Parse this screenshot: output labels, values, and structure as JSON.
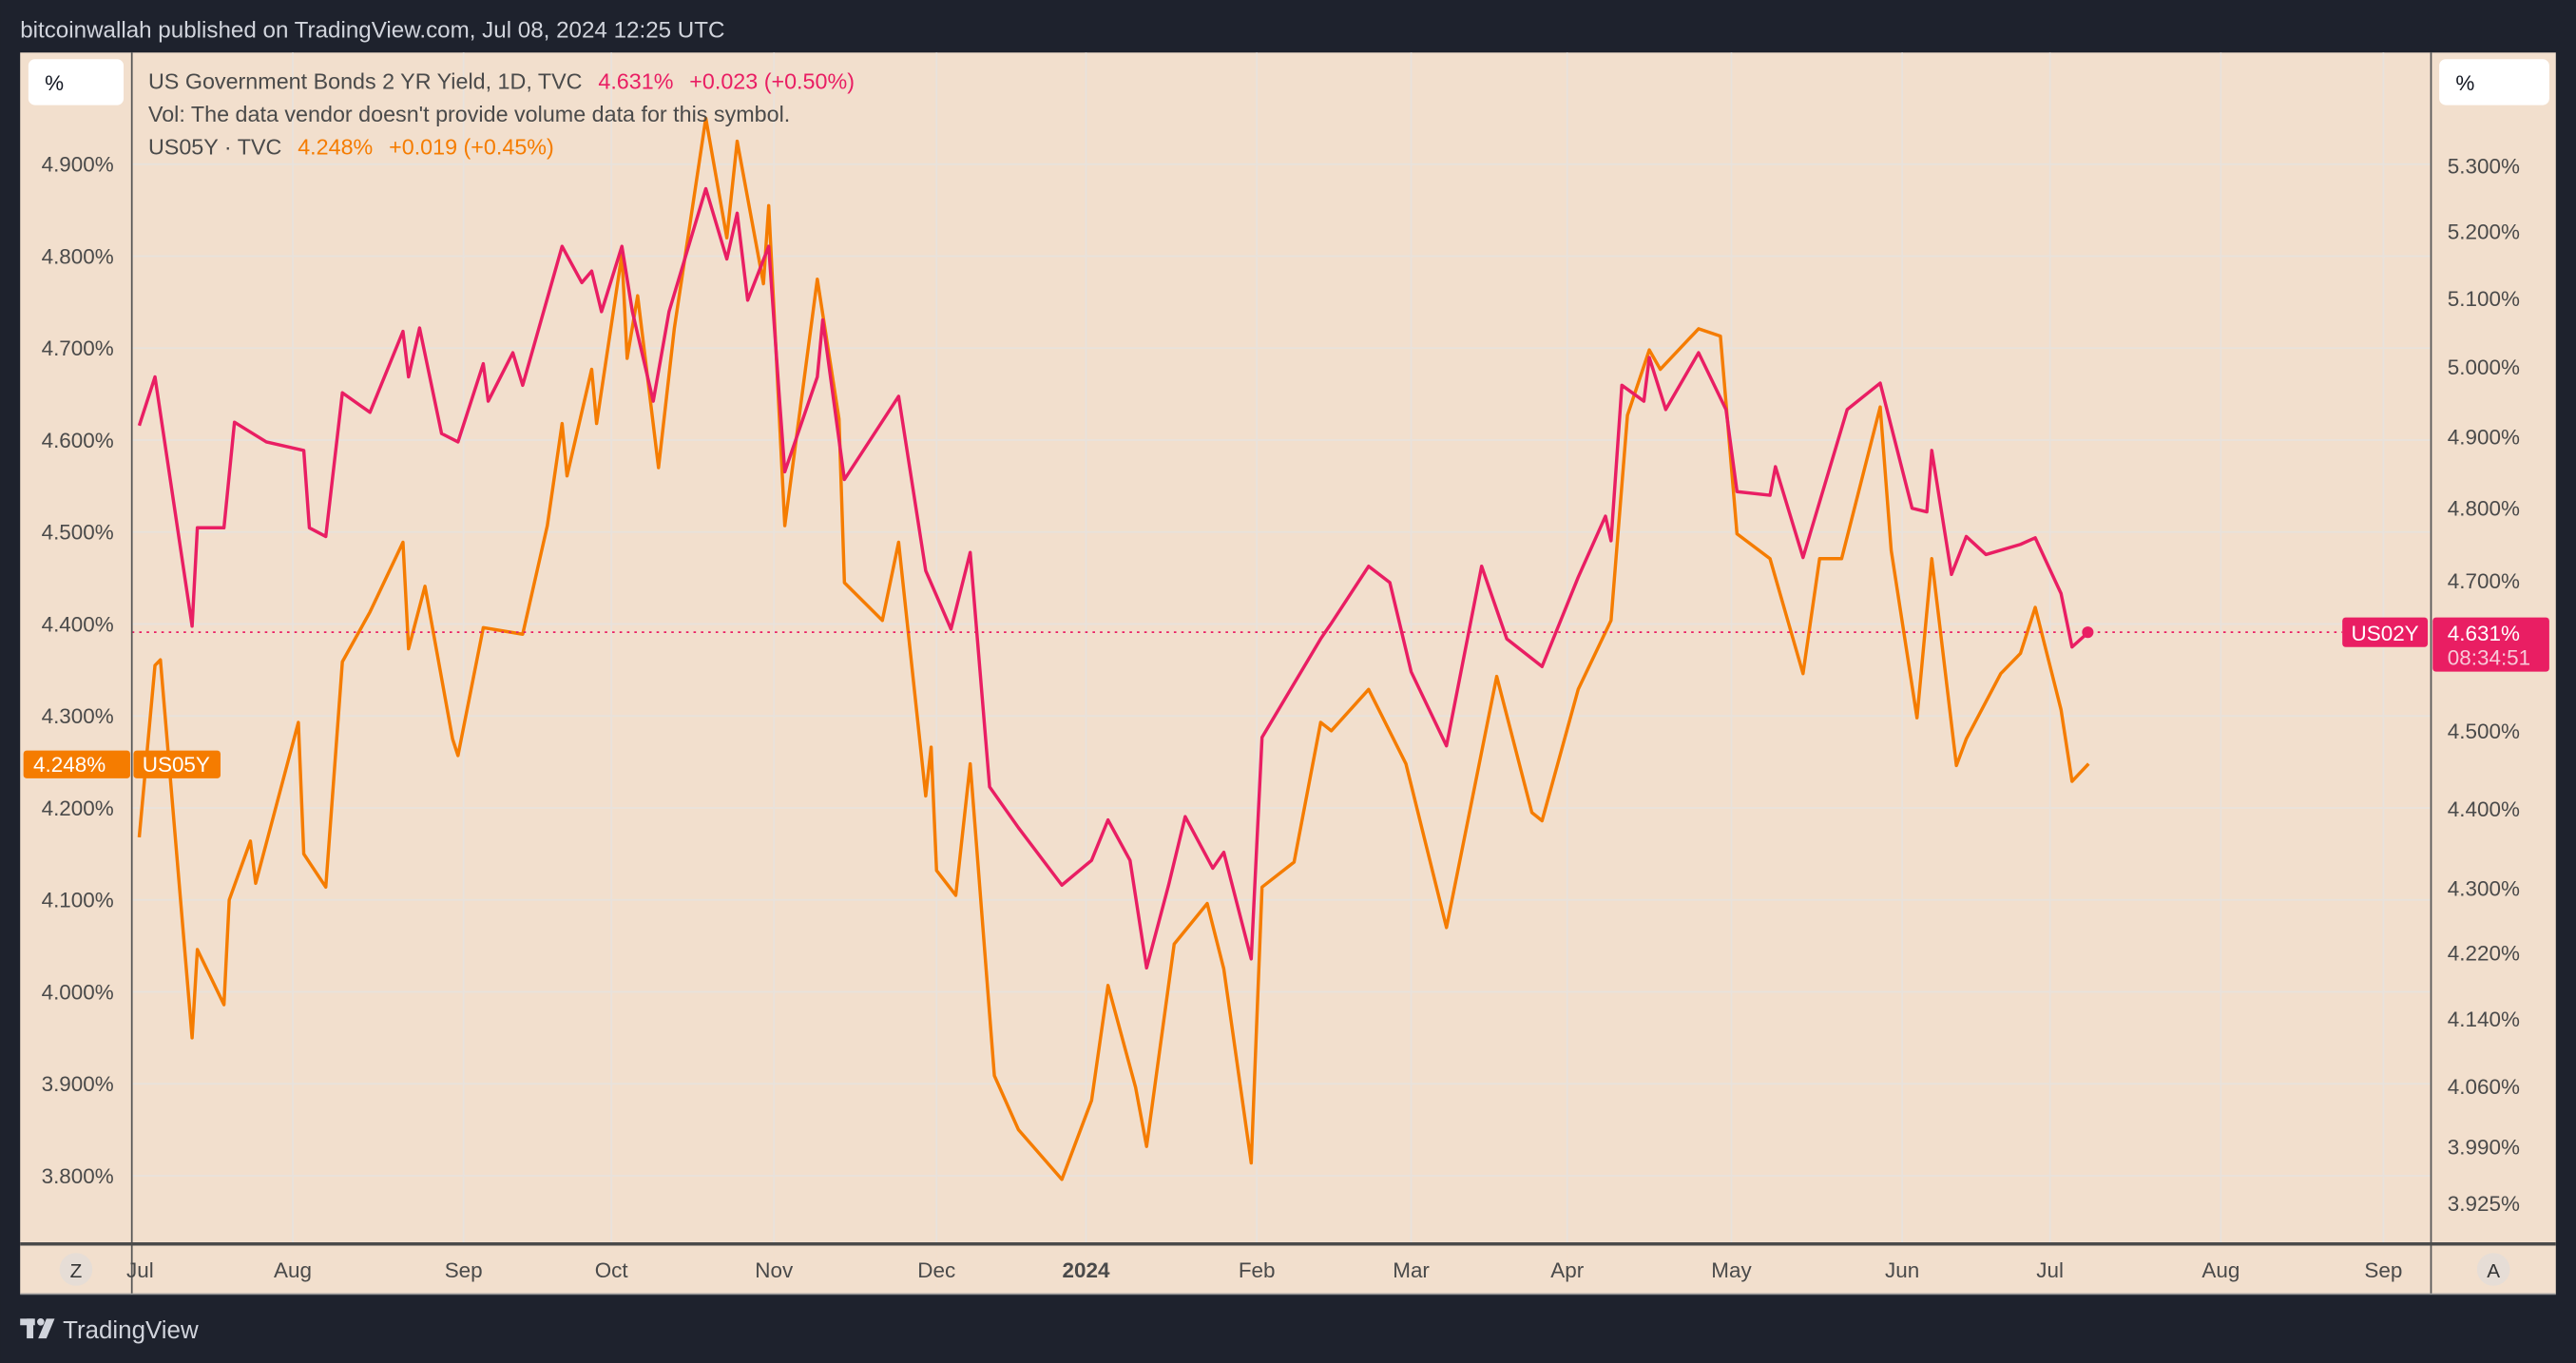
{
  "header": {
    "attribution": "bitcoinwallah published on TradingView.com, Jul 08, 2024 12:25 UTC"
  },
  "footer": {
    "logo_text": "TradingView"
  },
  "scale_buttons": {
    "left": "%",
    "right": "%"
  },
  "axis_buttons": {
    "left": "Z",
    "right": "A"
  },
  "legend": {
    "main_symbol": "US Government Bonds 2 YR Yield, 1D, TVC",
    "main_value": "4.631%",
    "main_change": "+0.023 (+0.50%)",
    "volume_note": "Vol: The data vendor doesn't provide volume data for this symbol.",
    "compare_symbol": "US05Y · TVC",
    "compare_value": "4.248%",
    "compare_change": "+0.019 (+0.45%)"
  },
  "price_labels": {
    "us02y_name": "US02Y",
    "us02y_value": "4.631%",
    "us02y_countdown": "08:34:51",
    "us05y_name": "US05Y",
    "us05y_value": "4.248%"
  },
  "colors": {
    "background": "#f2dfcd",
    "us02y": "#e91e63",
    "us05y": "#f57c00",
    "frame": "#1e222d",
    "grid": "#e9e1da"
  },
  "chart_data": {
    "type": "line",
    "title": "",
    "grid": true,
    "x_tick_labels": [
      "Jul",
      "Aug",
      "Sep",
      "Oct",
      "Nov",
      "Dec",
      "2024",
      "Feb",
      "Mar",
      "Apr",
      "May",
      "Jun",
      "Jul",
      "Aug",
      "Sep"
    ],
    "left_axis": {
      "scale": "linear",
      "range": [
        3.75,
        4.99
      ],
      "ticks": [
        "4.900%",
        "4.800%",
        "4.700%",
        "4.600%",
        "4.500%",
        "4.400%",
        "4.300%",
        "4.200%",
        "4.100%",
        "4.000%",
        "3.900%",
        "3.800%"
      ]
    },
    "right_axis": {
      "scale": "log",
      "range": [
        3.9,
        5.45
      ],
      "ticks": [
        "5.300%",
        "5.200%",
        "5.100%",
        "5.000%",
        "4.900%",
        "4.800%",
        "4.700%",
        "4.500%",
        "4.400%",
        "4.300%",
        "4.220%",
        "4.140%",
        "4.060%",
        "3.990%",
        "3.925%"
      ]
    },
    "series": [
      {
        "name": "US05Y",
        "axis": "left",
        "points": [
          [
            "2023-07-03",
            4.168
          ],
          [
            "2023-07-06",
            4.355
          ],
          [
            "2023-07-07",
            4.361
          ],
          [
            "2023-07-13",
            3.95
          ],
          [
            "2023-07-14",
            4.046
          ],
          [
            "2023-07-19",
            3.986
          ],
          [
            "2023-07-20",
            4.1
          ],
          [
            "2023-07-24",
            4.164
          ],
          [
            "2023-07-25",
            4.118
          ],
          [
            "2023-08-02",
            4.293
          ],
          [
            "2023-08-03",
            4.15
          ],
          [
            "2023-08-07",
            4.114
          ],
          [
            "2023-08-10",
            4.359
          ],
          [
            "2023-08-15",
            4.413
          ],
          [
            "2023-08-21",
            4.489
          ],
          [
            "2023-08-22",
            4.373
          ],
          [
            "2023-08-25",
            4.441
          ],
          [
            "2023-08-30",
            4.275
          ],
          [
            "2023-08-31",
            4.257
          ],
          [
            "2023-09-05",
            4.396
          ],
          [
            "2023-09-13",
            4.389
          ],
          [
            "2023-09-18",
            4.507
          ],
          [
            "2023-09-21",
            4.618
          ],
          [
            "2023-09-22",
            4.561
          ],
          [
            "2023-09-27",
            4.677
          ],
          [
            "2023-09-28",
            4.618
          ],
          [
            "2023-10-03",
            4.802
          ],
          [
            "2023-10-04",
            4.689
          ],
          [
            "2023-10-06",
            4.757
          ],
          [
            "2023-10-10",
            4.57
          ],
          [
            "2023-10-13",
            4.721
          ],
          [
            "2023-10-19",
            4.95
          ],
          [
            "2023-10-23",
            4.82
          ],
          [
            "2023-10-25",
            4.925
          ],
          [
            "2023-10-30",
            4.77
          ],
          [
            "2023-10-31",
            4.855
          ],
          [
            "2023-11-03",
            4.507
          ],
          [
            "2023-11-09",
            4.775
          ],
          [
            "2023-11-13",
            4.623
          ],
          [
            "2023-11-14",
            4.445
          ],
          [
            "2023-11-21",
            4.404
          ],
          [
            "2023-11-24",
            4.489
          ],
          [
            "2023-11-29",
            4.213
          ],
          [
            "2023-11-30",
            4.266
          ],
          [
            "2023-12-01",
            4.132
          ],
          [
            "2023-12-05",
            4.105
          ],
          [
            "2023-12-08",
            4.248
          ],
          [
            "2023-12-13",
            3.909
          ],
          [
            "2023-12-18",
            3.85
          ],
          [
            "2023-12-27",
            3.796
          ],
          [
            "2024-01-02",
            3.882
          ],
          [
            "2024-01-05",
            4.007
          ],
          [
            "2024-01-10",
            3.896
          ],
          [
            "2024-01-12",
            3.832
          ],
          [
            "2024-01-17",
            4.052
          ],
          [
            "2024-01-23",
            4.096
          ],
          [
            "2024-01-26",
            4.025
          ],
          [
            "2024-01-31",
            3.814
          ],
          [
            "2024-02-02",
            4.114
          ],
          [
            "2024-02-08",
            4.141
          ],
          [
            "2024-02-13",
            4.293
          ],
          [
            "2024-02-15",
            4.284
          ],
          [
            "2024-02-22",
            4.329
          ],
          [
            "2024-02-29",
            4.248
          ],
          [
            "2024-03-08",
            4.07
          ],
          [
            "2024-03-18",
            4.343
          ],
          [
            "2024-03-25",
            4.195
          ],
          [
            "2024-03-27",
            4.186
          ],
          [
            "2024-04-03",
            4.329
          ],
          [
            "2024-04-09",
            4.404
          ],
          [
            "2024-04-12",
            4.627
          ],
          [
            "2024-04-16",
            4.698
          ],
          [
            "2024-04-18",
            4.677
          ],
          [
            "2024-04-25",
            4.721
          ],
          [
            "2024-04-29",
            4.713
          ],
          [
            "2024-05-02",
            4.498
          ],
          [
            "2024-05-08",
            4.471
          ],
          [
            "2024-05-14",
            4.346
          ],
          [
            "2024-05-17",
            4.471
          ],
          [
            "2024-05-21",
            4.471
          ],
          [
            "2024-05-28",
            4.636
          ],
          [
            "2024-05-30",
            4.48
          ],
          [
            "2024-06-04",
            4.298
          ],
          [
            "2024-06-07",
            4.471
          ],
          [
            "2024-06-12",
            4.246
          ],
          [
            "2024-06-14",
            4.275
          ],
          [
            "2024-06-21",
            4.346
          ],
          [
            "2024-06-25",
            4.368
          ],
          [
            "2024-06-28",
            4.418
          ],
          [
            "2024-07-03",
            4.307
          ],
          [
            "2024-07-05",
            4.229
          ],
          [
            "2024-07-08",
            4.248
          ]
        ]
      },
      {
        "name": "US02Y",
        "axis": "right",
        "points": [
          [
            "2023-07-03",
            4.916
          ],
          [
            "2023-07-06",
            4.986
          ],
          [
            "2023-07-13",
            4.639
          ],
          [
            "2023-07-14",
            4.773
          ],
          [
            "2023-07-19",
            4.773
          ],
          [
            "2023-07-21",
            4.921
          ],
          [
            "2023-07-27",
            4.893
          ],
          [
            "2023-08-03",
            4.881
          ],
          [
            "2023-08-04",
            4.773
          ],
          [
            "2023-08-07",
            4.761
          ],
          [
            "2023-08-10",
            4.963
          ],
          [
            "2023-08-15",
            4.935
          ],
          [
            "2023-08-21",
            5.052
          ],
          [
            "2023-08-22",
            4.986
          ],
          [
            "2023-08-24",
            5.057
          ],
          [
            "2023-08-28",
            4.905
          ],
          [
            "2023-08-31",
            4.893
          ],
          [
            "2023-09-05",
            5.005
          ],
          [
            "2023-09-06",
            4.951
          ],
          [
            "2023-09-11",
            5.021
          ],
          [
            "2023-09-13",
            4.974
          ],
          [
            "2023-09-21",
            5.178
          ],
          [
            "2023-09-25",
            5.124
          ],
          [
            "2023-09-27",
            5.141
          ],
          [
            "2023-09-29",
            5.081
          ],
          [
            "2023-10-03",
            5.178
          ],
          [
            "2023-10-05",
            5.081
          ],
          [
            "2023-10-09",
            4.951
          ],
          [
            "2023-10-12",
            5.081
          ],
          [
            "2023-10-19",
            5.265
          ],
          [
            "2023-10-23",
            5.159
          ],
          [
            "2023-10-25",
            5.228
          ],
          [
            "2023-10-27",
            5.098
          ],
          [
            "2023-10-31",
            5.178
          ],
          [
            "2023-11-02",
            4.956
          ],
          [
            "2023-11-03",
            4.851
          ],
          [
            "2023-11-09",
            4.986
          ],
          [
            "2023-11-10",
            5.069
          ],
          [
            "2023-11-14",
            4.84
          ],
          [
            "2023-11-24",
            4.958
          ],
          [
            "2023-11-29",
            4.714
          ],
          [
            "2023-12-04",
            4.635
          ],
          [
            "2023-12-08",
            4.739
          ],
          [
            "2023-12-12",
            4.428
          ],
          [
            "2023-12-18",
            4.376
          ],
          [
            "2023-12-27",
            4.304
          ],
          [
            "2024-01-02",
            4.335
          ],
          [
            "2024-01-05",
            4.386
          ],
          [
            "2024-01-09",
            4.335
          ],
          [
            "2024-01-12",
            4.202
          ],
          [
            "2024-01-16",
            4.304
          ],
          [
            "2024-01-19",
            4.39
          ],
          [
            "2024-01-24",
            4.325
          ],
          [
            "2024-01-26",
            4.345
          ],
          [
            "2024-01-31",
            4.213
          ],
          [
            "2024-02-02",
            4.492
          ],
          [
            "2024-02-13",
            4.622
          ],
          [
            "2024-02-15",
            4.643
          ],
          [
            "2024-02-22",
            4.72
          ],
          [
            "2024-02-26",
            4.698
          ],
          [
            "2024-03-01",
            4.578
          ],
          [
            "2024-03-08",
            4.481
          ],
          [
            "2024-03-15",
            4.72
          ],
          [
            "2024-03-20",
            4.622
          ],
          [
            "2024-03-27",
            4.585
          ],
          [
            "2024-04-03",
            4.705
          ],
          [
            "2024-04-08",
            4.789
          ],
          [
            "2024-04-09",
            4.755
          ],
          [
            "2024-04-11",
            4.974
          ],
          [
            "2024-04-15",
            4.951
          ],
          [
            "2024-04-16",
            5.014
          ],
          [
            "2024-04-19",
            4.939
          ],
          [
            "2024-04-25",
            5.021
          ],
          [
            "2024-04-30",
            4.939
          ],
          [
            "2024-05-02",
            4.823
          ],
          [
            "2024-05-08",
            4.818
          ],
          [
            "2024-05-09",
            4.858
          ],
          [
            "2024-05-14",
            4.732
          ],
          [
            "2024-05-22",
            4.939
          ],
          [
            "2024-05-28",
            4.977
          ],
          [
            "2024-06-03",
            4.8
          ],
          [
            "2024-06-06",
            4.795
          ],
          [
            "2024-06-07",
            4.881
          ],
          [
            "2024-06-11",
            4.709
          ],
          [
            "2024-06-14",
            4.761
          ],
          [
            "2024-06-18",
            4.736
          ],
          [
            "2024-06-25",
            4.75
          ],
          [
            "2024-06-28",
            4.759
          ],
          [
            "2024-07-03",
            4.683
          ],
          [
            "2024-07-05",
            4.611
          ],
          [
            "2024-07-08",
            4.631
          ]
        ]
      }
    ]
  }
}
